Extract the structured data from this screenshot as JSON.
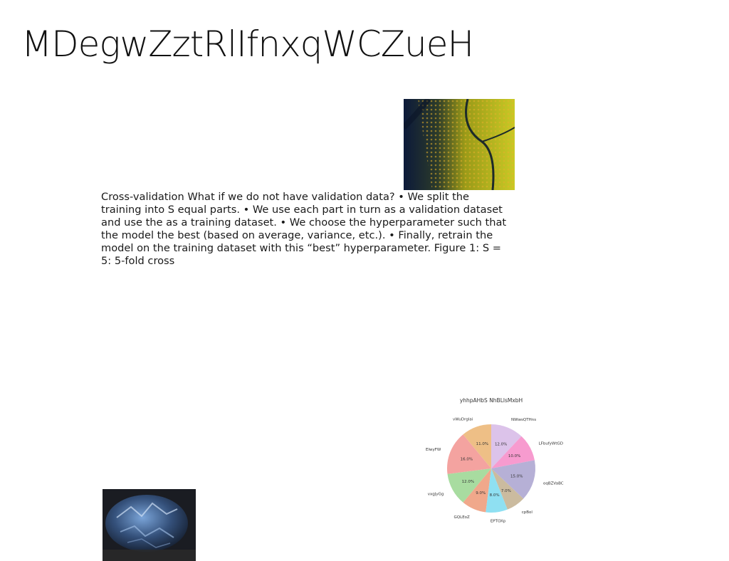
{
  "slide": {
    "title": "MDegwZztRlIfnxqWCZueH",
    "body_text": "Cross-validation What if we do not have validation data? • We split the training into S equal parts. • We use each part in turn as a validation dataset and use the as a training dataset. • We choose the hyperparameter such that the model the best (based on average, variance, etc.). • Finally, retrain the model on the training dataset with this “best” hyperparameter. Figure 1: S = 5: 5-fold cross"
  },
  "chart_data": {
    "type": "pie",
    "title": "yhhpAHbS NhBLlsMxbH",
    "start_angle_deg": 90,
    "direction": "clockwise",
    "slices": [
      {
        "label": "NWwsQTHns",
        "value": 12.0,
        "color": "#dcc3ea"
      },
      {
        "label": "LFbufyWtGD",
        "value": 10.0,
        "color": "#f79bcf"
      },
      {
        "label": "oqBZVaBC",
        "value": 15.0,
        "color": "#b6b0d6"
      },
      {
        "label": "cpBol",
        "value": 7.0,
        "color": "#cbbb9f"
      },
      {
        "label": "EPTOXp",
        "value": 8.0,
        "color": "#8fe0f2"
      },
      {
        "label": "GQLEoZ",
        "value": 9.0,
        "color": "#f0a88b"
      },
      {
        "label": "vxgJyGg",
        "value": 12.0,
        "color": "#a8dca0"
      },
      {
        "label": "ElwyFW",
        "value": 16.0,
        "color": "#f4a3a0"
      },
      {
        "label": "vWuDrglai",
        "value": 11.0,
        "color": "#eebf86"
      }
    ]
  }
}
